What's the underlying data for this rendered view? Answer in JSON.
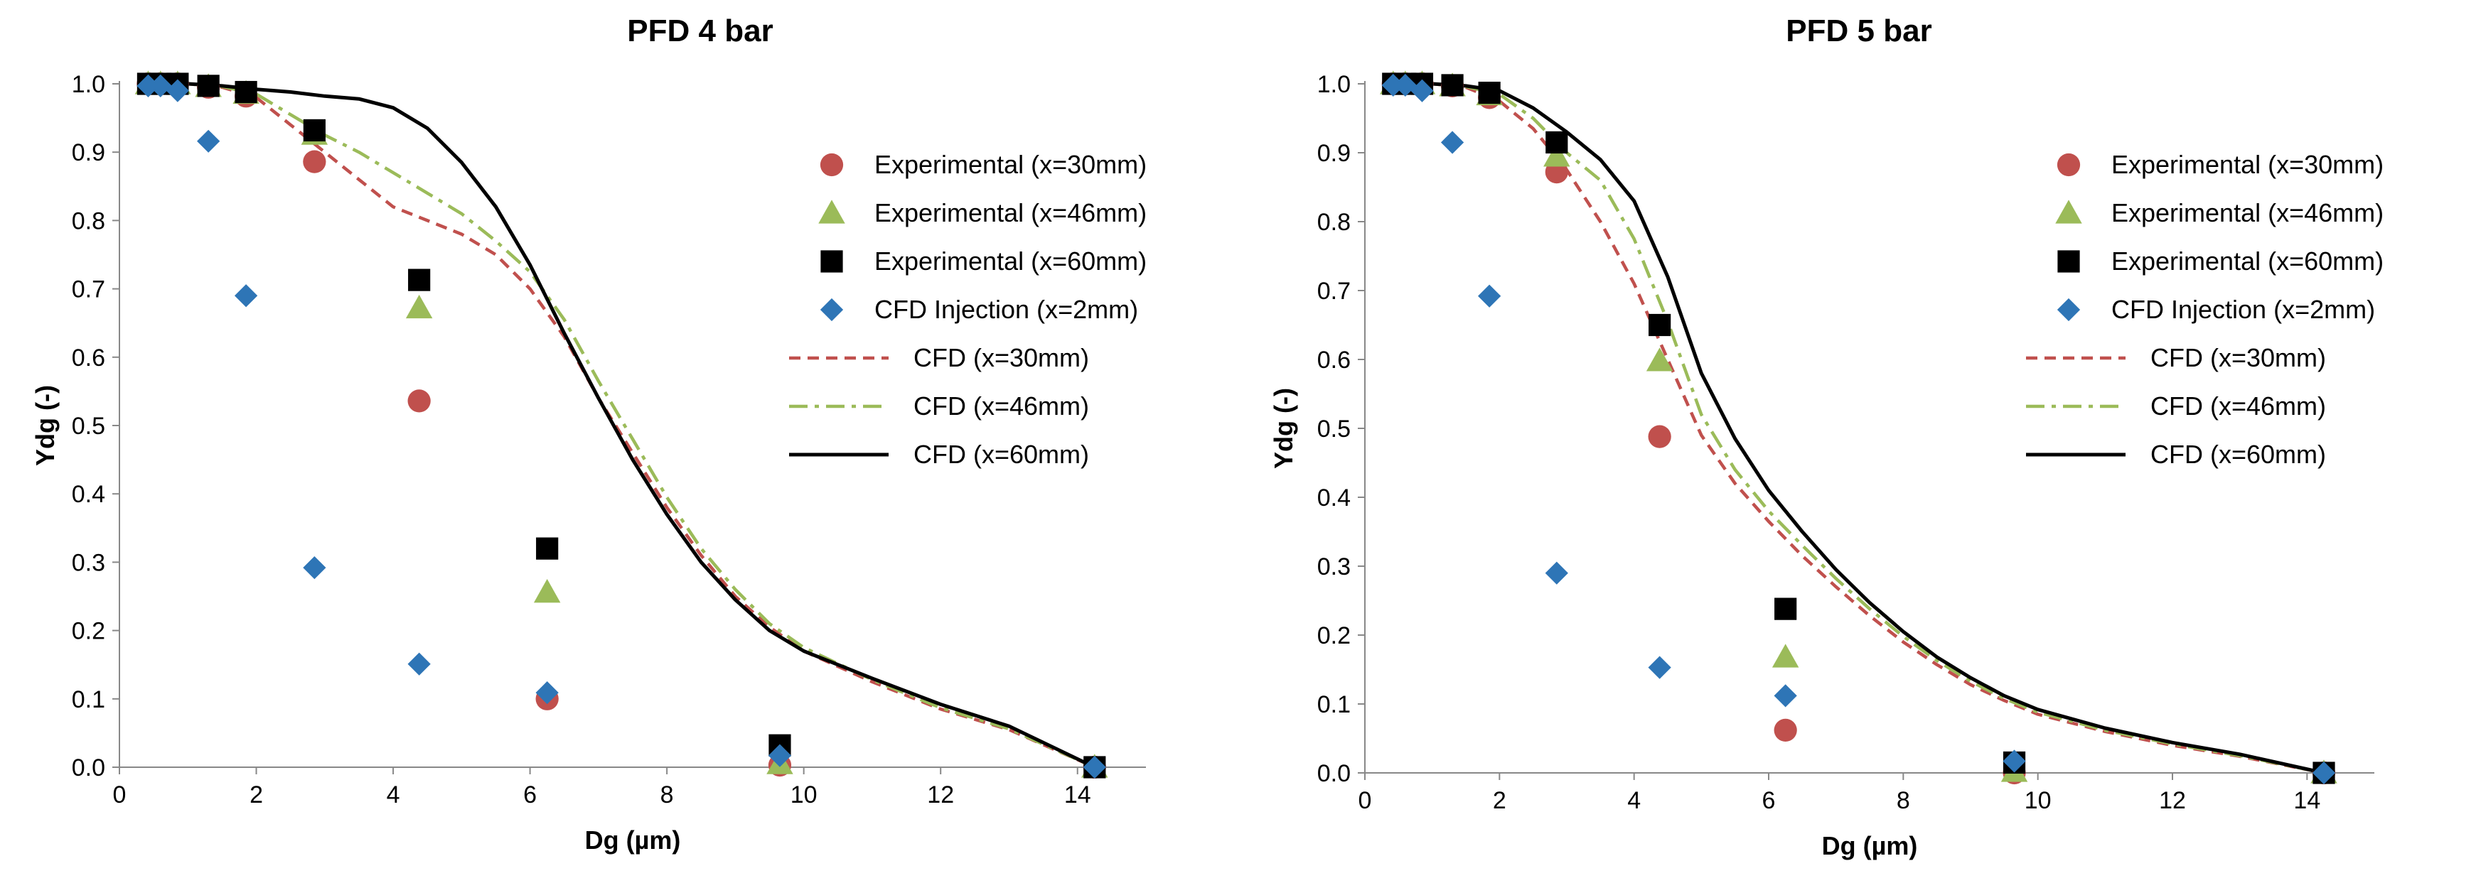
{
  "chart_data": [
    {
      "type": "scatter",
      "title": "PFD 4 bar",
      "xlabel": "Dg (µm)",
      "ylabel": "Ydg (-)",
      "xlim": [
        0,
        15
      ],
      "ylim": [
        0,
        1
      ],
      "xticks": [
        0,
        2,
        4,
        6,
        8,
        10,
        12,
        14
      ],
      "yticks": [
        0.0,
        0.1,
        0.2,
        0.3,
        0.4,
        0.5,
        0.6,
        0.7,
        0.8,
        0.9,
        1.0
      ],
      "grid": false,
      "legend_position": "right",
      "series": [
        {
          "name": "Experimental (x=30mm)",
          "kind": "marker",
          "marker": "circle",
          "color": "#c0504d",
          "x": [
            0.42,
            0.6,
            0.85,
            1.3,
            1.85,
            2.85,
            4.38,
            6.25,
            9.65,
            14.25
          ],
          "y": [
            1.0,
            1.0,
            1.0,
            0.995,
            0.982,
            0.886,
            0.536,
            0.1,
            0.003,
            0.0
          ]
        },
        {
          "name": "Experimental (x=46mm)",
          "kind": "marker",
          "marker": "triangle",
          "color": "#9bbb59",
          "x": [
            0.42,
            0.6,
            0.85,
            1.3,
            1.85,
            2.85,
            4.38,
            6.25,
            9.65,
            14.25
          ],
          "y": [
            1.0,
            1.0,
            1.0,
            0.996,
            0.986,
            0.926,
            0.672,
            0.256,
            0.005,
            0.0
          ]
        },
        {
          "name": "Experimental (x=60mm)",
          "kind": "marker",
          "marker": "square",
          "color": "#000000",
          "x": [
            0.42,
            0.6,
            0.85,
            1.3,
            1.85,
            2.85,
            4.38,
            6.25,
            9.65,
            14.25
          ],
          "y": [
            1.0,
            1.0,
            1.0,
            0.997,
            0.988,
            0.932,
            0.713,
            0.32,
            0.032,
            0.0
          ]
        },
        {
          "name": "CFD Injection (x=2mm)",
          "kind": "marker",
          "marker": "diamond",
          "color": "#2e75b6",
          "x": [
            0.42,
            0.6,
            0.85,
            1.3,
            1.85,
            2.85,
            4.38,
            6.25,
            9.65,
            14.25
          ],
          "y": [
            0.997,
            0.997,
            0.99,
            0.916,
            0.69,
            0.292,
            0.151,
            0.109,
            0.017,
            0.0
          ]
        },
        {
          "name": "CFD (x=30mm)",
          "kind": "line",
          "dash": "dash",
          "color": "#c0504d",
          "x": [
            0.4,
            1.0,
            1.5,
            2.0,
            2.5,
            3.0,
            3.5,
            4.0,
            4.5,
            5.0,
            5.5,
            6.0,
            6.5,
            7.0,
            7.5,
            8.0,
            8.5,
            9.0,
            9.5,
            10.0,
            11.0,
            12.0,
            13.0,
            14.25
          ],
          "y": [
            1.0,
            1.0,
            0.995,
            0.98,
            0.94,
            0.9,
            0.86,
            0.82,
            0.8,
            0.78,
            0.75,
            0.7,
            0.63,
            0.54,
            0.46,
            0.38,
            0.31,
            0.25,
            0.205,
            0.17,
            0.125,
            0.085,
            0.055,
            0.0
          ]
        },
        {
          "name": "CFD (x=46mm)",
          "kind": "line",
          "dash": "dashdot",
          "color": "#9bbb59",
          "x": [
            0.4,
            1.0,
            1.5,
            2.0,
            2.5,
            3.0,
            3.5,
            4.0,
            4.5,
            5.0,
            5.5,
            6.0,
            6.5,
            7.0,
            7.5,
            8.0,
            8.5,
            9.0,
            9.5,
            10.0,
            11.0,
            12.0,
            13.0,
            14.25
          ],
          "y": [
            1.0,
            1.0,
            0.996,
            0.985,
            0.955,
            0.925,
            0.9,
            0.87,
            0.84,
            0.81,
            0.77,
            0.725,
            0.655,
            0.565,
            0.48,
            0.395,
            0.32,
            0.26,
            0.21,
            0.175,
            0.128,
            0.087,
            0.056,
            0.0
          ]
        },
        {
          "name": "CFD (x=60mm)",
          "kind": "line",
          "dash": "solid",
          "color": "#000000",
          "x": [
            0.4,
            1.0,
            1.5,
            2.0,
            2.5,
            3.0,
            3.5,
            4.0,
            4.5,
            5.0,
            5.5,
            6.0,
            6.5,
            7.0,
            7.5,
            8.0,
            8.5,
            9.0,
            9.5,
            10.0,
            11.0,
            12.0,
            13.0,
            14.25
          ],
          "y": [
            1.0,
            1.0,
            0.997,
            0.992,
            0.988,
            0.982,
            0.978,
            0.965,
            0.935,
            0.885,
            0.82,
            0.735,
            0.635,
            0.54,
            0.45,
            0.37,
            0.3,
            0.245,
            0.2,
            0.17,
            0.13,
            0.092,
            0.06,
            0.0
          ]
        }
      ]
    },
    {
      "type": "scatter",
      "title": "PFD 5 bar",
      "xlabel": "Dg (µm)",
      "ylabel": "Ydg (-)",
      "xlim": [
        0,
        15
      ],
      "ylim": [
        0,
        1
      ],
      "xticks": [
        0,
        2,
        4,
        6,
        8,
        10,
        12,
        14
      ],
      "yticks": [
        0.0,
        0.1,
        0.2,
        0.3,
        0.4,
        0.5,
        0.6,
        0.7,
        0.8,
        0.9,
        1.0
      ],
      "grid": false,
      "legend_position": "right",
      "series": [
        {
          "name": "Experimental (x=30mm)",
          "kind": "marker",
          "marker": "circle",
          "color": "#c0504d",
          "x": [
            0.42,
            0.6,
            0.85,
            1.3,
            1.85,
            2.85,
            4.38,
            6.25,
            9.65,
            14.25
          ],
          "y": [
            1.0,
            1.0,
            1.0,
            0.997,
            0.98,
            0.872,
            0.488,
            0.062,
            0.0,
            0.0
          ]
        },
        {
          "name": "Experimental (x=46mm)",
          "kind": "marker",
          "marker": "triangle",
          "color": "#9bbb59",
          "x": [
            0.42,
            0.6,
            0.85,
            1.3,
            1.85,
            2.85,
            4.38,
            6.25,
            9.65,
            14.25
          ],
          "y": [
            1.0,
            1.0,
            1.0,
            0.997,
            0.984,
            0.895,
            0.598,
            0.168,
            0.002,
            0.0
          ]
        },
        {
          "name": "Experimental (x=60mm)",
          "kind": "marker",
          "marker": "square",
          "color": "#000000",
          "x": [
            0.42,
            0.6,
            0.85,
            1.3,
            1.85,
            2.85,
            4.38,
            6.25,
            9.65,
            14.25
          ],
          "y": [
            1.0,
            1.0,
            1.0,
            0.998,
            0.987,
            0.915,
            0.65,
            0.238,
            0.015,
            0.0
          ]
        },
        {
          "name": "CFD Injection (x=2mm)",
          "kind": "marker",
          "marker": "diamond",
          "color": "#2e75b6",
          "x": [
            0.42,
            0.6,
            0.85,
            1.3,
            1.85,
            2.85,
            4.38,
            6.25,
            9.65,
            14.25
          ],
          "y": [
            0.998,
            0.998,
            0.99,
            0.915,
            0.692,
            0.29,
            0.153,
            0.112,
            0.017,
            0.0
          ]
        },
        {
          "name": "CFD (x=30mm)",
          "kind": "line",
          "dash": "dash",
          "color": "#c0504d",
          "x": [
            0.4,
            1.0,
            1.5,
            2.0,
            2.5,
            3.0,
            3.5,
            4.0,
            4.5,
            5.0,
            5.5,
            6.0,
            6.5,
            7.0,
            7.5,
            8.0,
            8.5,
            9.0,
            9.5,
            10.0,
            11.0,
            12.0,
            13.0,
            14.25
          ],
          "y": [
            1.0,
            1.0,
            0.995,
            0.975,
            0.935,
            0.875,
            0.8,
            0.71,
            0.6,
            0.49,
            0.42,
            0.365,
            0.315,
            0.27,
            0.228,
            0.19,
            0.157,
            0.128,
            0.105,
            0.085,
            0.06,
            0.04,
            0.024,
            0.0
          ]
        },
        {
          "name": "CFD (x=46mm)",
          "kind": "line",
          "dash": "dashdot",
          "color": "#9bbb59",
          "x": [
            0.4,
            1.0,
            1.5,
            2.0,
            2.5,
            3.0,
            3.5,
            4.0,
            4.5,
            5.0,
            5.5,
            6.0,
            6.5,
            7.0,
            7.5,
            8.0,
            8.5,
            9.0,
            9.5,
            10.0,
            11.0,
            12.0,
            13.0,
            14.25
          ],
          "y": [
            1.0,
            1.0,
            0.996,
            0.985,
            0.95,
            0.9,
            0.86,
            0.775,
            0.655,
            0.52,
            0.44,
            0.38,
            0.33,
            0.282,
            0.238,
            0.198,
            0.163,
            0.133,
            0.108,
            0.088,
            0.062,
            0.042,
            0.025,
            0.0
          ]
        },
        {
          "name": "CFD (x=60mm)",
          "kind": "line",
          "dash": "solid",
          "color": "#000000",
          "x": [
            0.4,
            1.0,
            1.5,
            2.0,
            2.5,
            3.0,
            3.5,
            4.0,
            4.5,
            5.0,
            5.5,
            6.0,
            6.5,
            7.0,
            7.5,
            8.0,
            8.5,
            9.0,
            9.5,
            10.0,
            11.0,
            12.0,
            13.0,
            14.25
          ],
          "y": [
            1.0,
            1.0,
            0.997,
            0.99,
            0.965,
            0.93,
            0.89,
            0.83,
            0.72,
            0.58,
            0.485,
            0.41,
            0.35,
            0.295,
            0.247,
            0.205,
            0.168,
            0.138,
            0.112,
            0.092,
            0.065,
            0.044,
            0.027,
            0.0
          ]
        }
      ]
    }
  ]
}
